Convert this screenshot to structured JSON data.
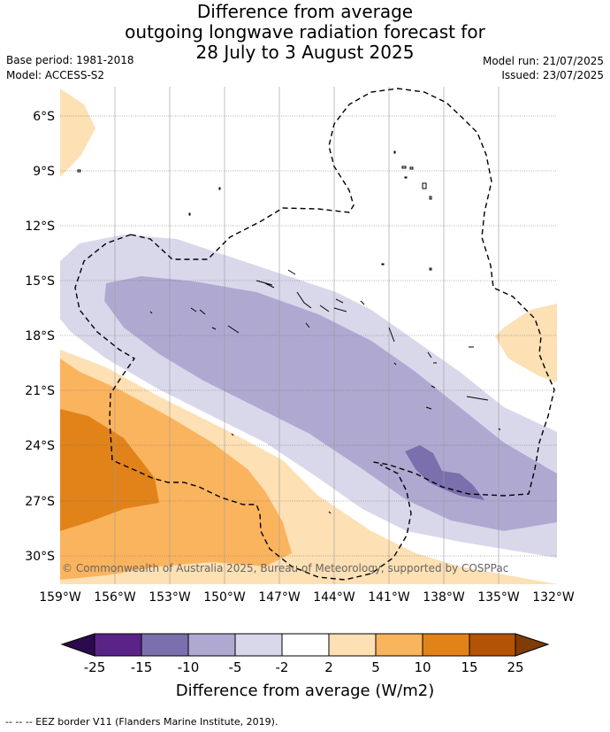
{
  "title": {
    "line1": "Difference from average",
    "line2": "outgoing longwave radiation forecast for",
    "line3": "28 July to 3 August 2025"
  },
  "meta": {
    "base_period": "Base period: 1981-2018",
    "model": "Model: ACCESS-S2",
    "model_run": "Model run: 21/07/2025",
    "issued": "Issued: 23/07/2025"
  },
  "map": {
    "lat_ticks": [
      "6°S",
      "9°S",
      "12°S",
      "15°S",
      "18°S",
      "21°S",
      "24°S",
      "27°S",
      "30°S"
    ],
    "lon_ticks": [
      "159°W",
      "156°W",
      "153°W",
      "150°W",
      "147°W",
      "144°W",
      "141°W",
      "138°W",
      "135°W",
      "132°W"
    ],
    "copyright": "© Commonwealth of Australia 2025, Bureau of Meteorology, supported by COSPPac"
  },
  "colorbar": {
    "labels": [
      "-25",
      "-15",
      "-10",
      "-5",
      "-2",
      "2",
      "5",
      "10",
      "15",
      "25"
    ],
    "colors": [
      "#2d0a4e",
      "#5a2387",
      "#7b6fad",
      "#afa9d2",
      "#d9d8eb",
      "#ffffff",
      "#fde0b4",
      "#fbb45e",
      "#e2831a",
      "#b35306",
      "#7f3b08"
    ],
    "title": "Difference from average (W/m2)"
  },
  "footer": "--  --  -- EEZ border V11 (Flanders Marine Institute, 2019)."
}
